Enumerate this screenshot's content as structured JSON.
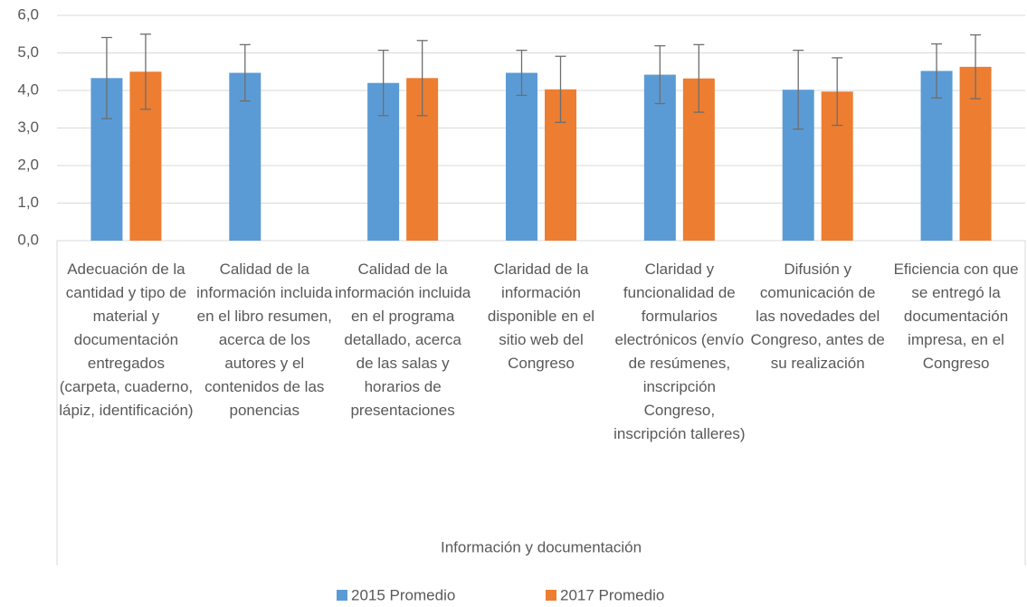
{
  "chart_data": {
    "type": "bar",
    "categories": [
      "Adecuación de la cantidad y tipo de material y documentación entregados (carpeta, cuaderno, lápiz, identificación)",
      "Calidad de la información incluida en el libro resumen, acerca de los autores y el contenidos de las ponencias",
      "Calidad de la información incluida en el programa detallado, acerca de las salas y horarios de presentaciones",
      "Claridad de la información disponible en el sitio web del Congreso",
      "Claridad y funcionalidad de formularios electrónicos (envío de resúmenes, inscripción Congreso, inscripción talleres)",
      "Difusión y comunicación de las novedades del Congreso, antes de su realización",
      "Eficiencia con que se entregó la documentación impresa, en el Congreso"
    ],
    "group_label": "Información y documentación",
    "series": [
      {
        "name": "2015 Promedio",
        "color": "#5b9bd5",
        "values": [
          4.33,
          4.47,
          4.2,
          4.47,
          4.42,
          4.02,
          4.52
        ],
        "errors": [
          1.08,
          0.75,
          0.87,
          0.6,
          0.77,
          1.05,
          0.72
        ]
      },
      {
        "name": "2017 Promedio",
        "color": "#ed7d31",
        "values": [
          4.5,
          null,
          4.33,
          4.03,
          4.32,
          3.97,
          4.63
        ],
        "errors": [
          1.0,
          null,
          1.0,
          0.88,
          0.9,
          0.9,
          0.85
        ]
      }
    ],
    "ylim": [
      0,
      6
    ],
    "yticks": [
      {
        "value": 0,
        "label": "0,0"
      },
      {
        "value": 1,
        "label": "1,0"
      },
      {
        "value": 2,
        "label": "2,0"
      },
      {
        "value": 3,
        "label": "3,0"
      },
      {
        "value": 4,
        "label": "4,0"
      },
      {
        "value": 5,
        "label": "5,0"
      },
      {
        "value": 6,
        "label": "6,0"
      }
    ],
    "grid": true,
    "legend": "bottom"
  }
}
